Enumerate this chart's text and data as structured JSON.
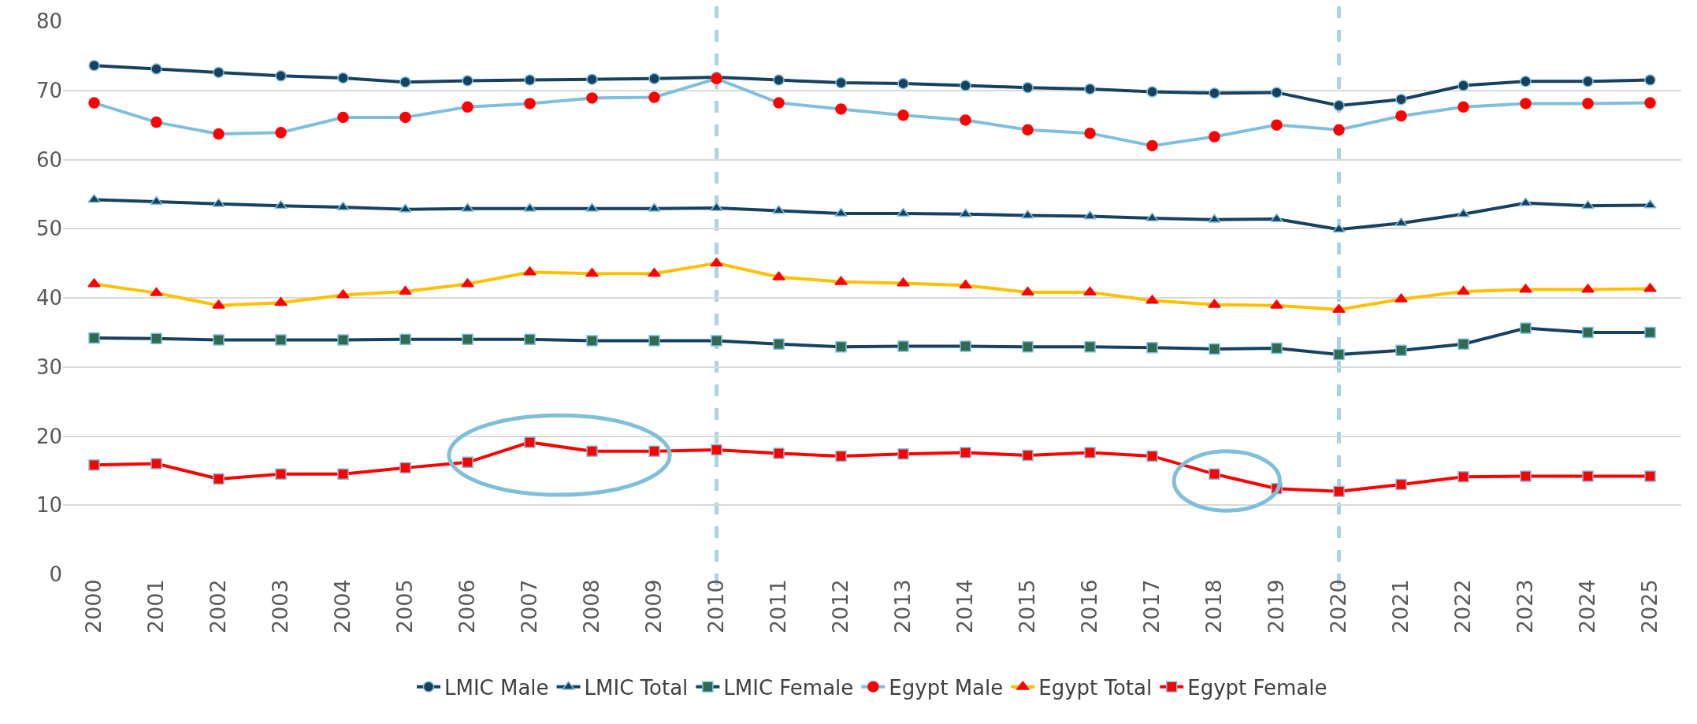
{
  "chart_data": {
    "type": "line",
    "categories": [
      "2000",
      "2001",
      "2002",
      "2003",
      "2004",
      "2005",
      "2006",
      "2007",
      "2008",
      "2009",
      "2010",
      "2011",
      "2012",
      "2013",
      "2014",
      "2015",
      "2016",
      "2017",
      "2018",
      "2019",
      "2020",
      "2021",
      "2022",
      "2023",
      "2024",
      "2025"
    ],
    "series": [
      {
        "name": "LMIC Male",
        "color": "#17425f",
        "marker": "circle",
        "values": [
          73.6,
          73.1,
          72.6,
          72.1,
          71.8,
          71.2,
          71.4,
          71.5,
          71.6,
          71.7,
          71.9,
          71.5,
          71.1,
          71.0,
          70.7,
          70.4,
          70.2,
          69.8,
          69.6,
          69.7,
          67.8,
          68.7,
          70.7,
          71.3,
          71.3,
          71.5
        ]
      },
      {
        "name": "LMIC Total",
        "color": "#17425f",
        "marker": "triangle",
        "values": [
          54.2,
          53.9,
          53.6,
          53.3,
          53.1,
          52.8,
          52.9,
          52.9,
          52.9,
          52.9,
          53.0,
          52.6,
          52.2,
          52.2,
          52.1,
          51.9,
          51.8,
          51.5,
          51.3,
          51.4,
          49.9,
          50.8,
          52.1,
          53.7,
          53.3,
          53.4
        ]
      },
      {
        "name": "LMIC Female",
        "color": "#17425f",
        "marker": "square",
        "colors": [
          "#2e6b50",
          "#2e6b50",
          "#2e6b50",
          "#2e6b50",
          "#2e6b50",
          "#2e6b50",
          "#2e6b50",
          "#2e6b50",
          "#2e6b50",
          "#2e6b50",
          "#2e6b50",
          "#2e6b50",
          "#2e6b50",
          "#2e6b50",
          "#2e6b50",
          "#2e6b50",
          "#2e6b50",
          "#2e6b50",
          "#2e6b50",
          "#2e6b50",
          "#2e6b50",
          "#2e6b50",
          "#2e6b50",
          "#2e6b50",
          "#2e6b50",
          "#2e6b50"
        ],
        "values": [
          34.2,
          34.1,
          33.9,
          33.9,
          33.9,
          34.0,
          34.0,
          34.0,
          33.8,
          33.8,
          33.8,
          33.3,
          32.9,
          33.0,
          33.0,
          32.9,
          32.9,
          32.8,
          32.6,
          32.7,
          31.8,
          32.4,
          33.3,
          35.6,
          35.0,
          35.0
        ]
      },
      {
        "name": "Egypt Male",
        "color": "#7fbfdc",
        "marker": "circle",
        "colors": [
          "#ff0000",
          "#ff0000",
          "#ff0000",
          "#ff0000",
          "#ff0000",
          "#ff0000",
          "#ff0000",
          "#ff0000",
          "#ff0000",
          "#ff0000",
          "#ff0000",
          "#ff0000",
          "#ff0000",
          "#ff0000",
          "#ff0000",
          "#ff0000",
          "#ff0000",
          "#ff0000",
          "#ff0000",
          "#ff0000",
          "#ff0000",
          "#ff0000",
          "#ff0000",
          "#ff0000",
          "#ff0000",
          "#ff0000"
        ],
        "values": [
          68.2,
          65.4,
          63.7,
          63.9,
          66.1,
          66.1,
          67.6,
          68.1,
          68.9,
          69.0,
          71.7,
          68.2,
          67.3,
          66.4,
          65.7,
          64.3,
          63.8,
          62.0,
          63.3,
          65.0,
          64.3,
          66.3,
          67.6,
          68.1,
          68.1,
          68.2
        ]
      },
      {
        "name": "Egypt Total",
        "color": "#ffc000",
        "marker": "triangle",
        "colors": [
          "#ff0000",
          "#ff0000",
          "#ff0000",
          "#ff0000",
          "#ff0000",
          "#ff0000",
          "#ff0000",
          "#ff0000",
          "#ff0000",
          "#ff0000",
          "#ff0000",
          "#ff0000",
          "#ff0000",
          "#ff0000",
          "#ff0000",
          "#ff0000",
          "#ff0000",
          "#ff0000",
          "#ff0000",
          "#ff0000",
          "#ff0000",
          "#ff0000",
          "#ff0000",
          "#ff0000",
          "#ff0000",
          "#ff0000"
        ],
        "values": [
          42.0,
          40.7,
          38.9,
          39.3,
          40.4,
          40.9,
          42.0,
          43.7,
          43.5,
          43.5,
          45.0,
          43.0,
          42.3,
          42.1,
          41.8,
          40.8,
          40.8,
          39.6,
          39.0,
          38.9,
          38.3,
          39.8,
          40.9,
          41.2,
          41.2,
          41.3
        ]
      },
      {
        "name": "Egypt Female",
        "color": "#ff0000",
        "marker": "square",
        "values": [
          15.8,
          16.0,
          13.8,
          14.5,
          14.5,
          15.4,
          16.2,
          19.1,
          17.8,
          17.8,
          18.0,
          17.5,
          17.1,
          17.4,
          17.6,
          17.2,
          17.6,
          17.1,
          14.5,
          12.4,
          12.0,
          13.0,
          14.1,
          14.2,
          14.2,
          14.2
        ]
      }
    ],
    "ylim": [
      0,
      80
    ],
    "yticks": [
      0,
      10,
      20,
      30,
      40,
      50,
      60,
      70,
      80
    ],
    "grid": "y",
    "legend": "bottom",
    "line_style": "solid",
    "ref_lines": [
      {
        "axis": "x",
        "value": "2010",
        "color": "#a8d4e6",
        "line_style": "dashed"
      },
      {
        "axis": "x",
        "value": "2020",
        "color": "#a8d4e6",
        "line_style": "dashed"
      }
    ]
  }
}
